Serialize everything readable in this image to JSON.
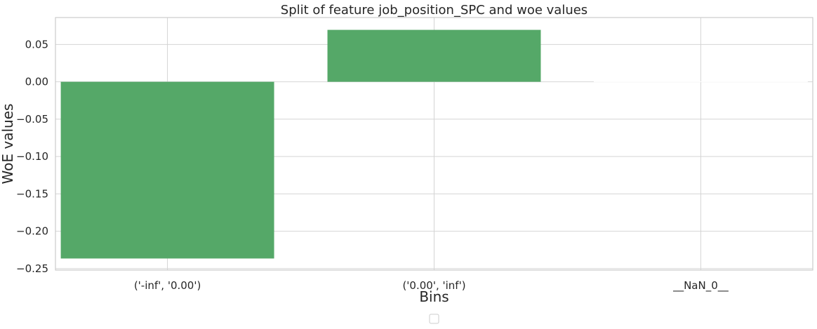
{
  "chart_data": {
    "type": "bar",
    "title": "Split of feature job_position_SPC and woe values",
    "xlabel": "Bins",
    "ylabel": "WoE values",
    "categories": [
      "('-inf', '0.00')",
      "('0.00', 'inf')",
      "__NaN_0__"
    ],
    "values": [
      -0.2365,
      0.0695,
      0.0
    ],
    "ylim": [
      -0.252,
      0.086
    ],
    "yticks": [
      0.05,
      0.0,
      -0.05,
      -0.1,
      -0.15,
      -0.2,
      -0.25
    ],
    "ytick_labels": [
      "0.05",
      "0.00",
      "−0.05",
      "−0.10",
      "−0.15",
      "−0.20",
      "−0.25"
    ],
    "grid": true,
    "legend": "bottom-center",
    "bar_color": "#55a868"
  }
}
